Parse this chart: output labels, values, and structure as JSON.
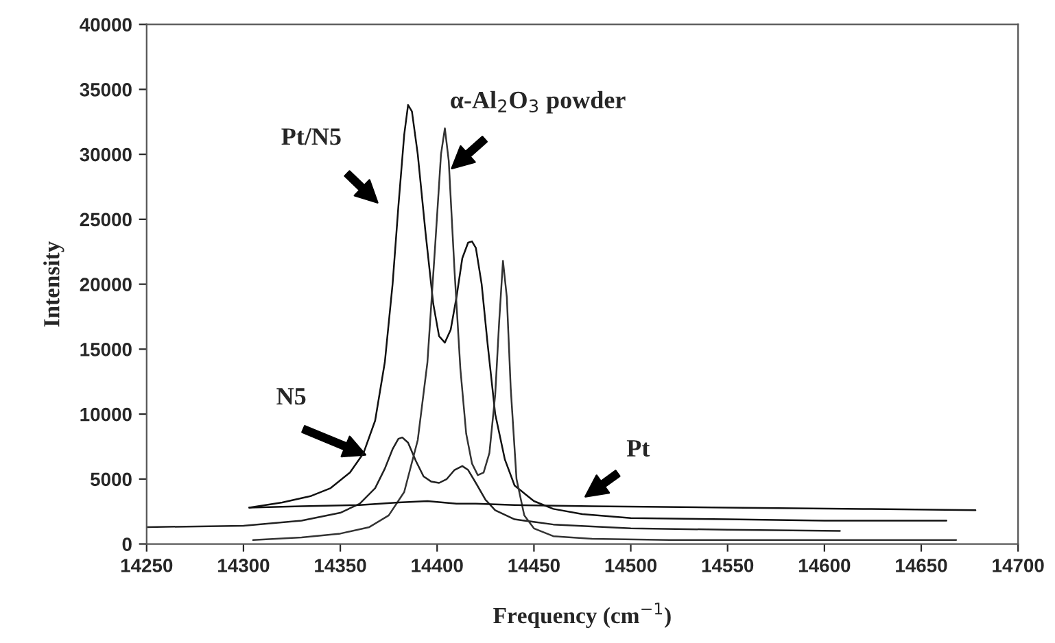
{
  "chart_data": {
    "type": "line",
    "xlabel": "Frequency (cm$^{−1}$)",
    "ylabel": "Intensity",
    "xlim": [
      14250,
      14700
    ],
    "ylim": [
      0,
      40000
    ],
    "xticks": [
      14250,
      14300,
      14350,
      14400,
      14450,
      14500,
      14550,
      14600,
      14650,
      14700
    ],
    "yticks": [
      0,
      5000,
      10000,
      15000,
      20000,
      25000,
      30000,
      35000,
      40000
    ],
    "grid": false,
    "marker": "none",
    "line_style": "solid",
    "series": [
      {
        "color": "#111111",
        "x": [
          14303,
          14320,
          14335,
          14345,
          14355,
          14362,
          14368,
          14373,
          14377,
          14380,
          14383,
          14385,
          14387,
          14390,
          14394,
          14398,
          14401,
          14404,
          14407,
          14410,
          14413,
          14416,
          14418,
          14420,
          14423,
          14426,
          14430,
          14435,
          14440,
          14450,
          14460,
          14475,
          14500,
          14550,
          14600,
          14663
        ],
        "values": [
          2800,
          3200,
          3700,
          4300,
          5500,
          7000,
          9500,
          14000,
          20000,
          26000,
          31500,
          33800,
          33300,
          30000,
          24000,
          18500,
          16000,
          15500,
          16500,
          19000,
          22000,
          23200,
          23300,
          22800,
          20000,
          15500,
          10000,
          6500,
          4500,
          3300,
          2700,
          2300,
          2000,
          1900,
          1800,
          1800
        ]
      },
      {
        "color": "#222222",
        "x": [
          14250,
          14300,
          14330,
          14350,
          14360,
          14368,
          14373,
          14377,
          14380,
          14382,
          14385,
          14389,
          14393,
          14397,
          14401,
          14405,
          14409,
          14413,
          14416,
          14420,
          14425,
          14430,
          14440,
          14460,
          14500,
          14550,
          14608
        ],
        "values": [
          1300,
          1400,
          1800,
          2400,
          3100,
          4300,
          5800,
          7300,
          8100,
          8200,
          7800,
          6400,
          5200,
          4800,
          4700,
          5000,
          5700,
          6000,
          5700,
          4700,
          3400,
          2600,
          1900,
          1500,
          1200,
          1100,
          1000
        ]
      },
      {
        "color": "#333333",
        "x": [
          14305,
          14330,
          14350,
          14365,
          14375,
          14383,
          14390,
          14395,
          14399,
          14402,
          14404,
          14406,
          14409,
          14412,
          14415,
          14418,
          14421,
          14424,
          14427,
          14430,
          14432,
          14434,
          14436,
          14438,
          14441,
          14445,
          14450,
          14460,
          14480,
          14520,
          14600,
          14668
        ],
        "values": [
          300,
          500,
          800,
          1300,
          2200,
          4000,
          8000,
          14000,
          23000,
          30000,
          32000,
          29500,
          21000,
          13500,
          8500,
          6200,
          5300,
          5500,
          7000,
          11500,
          17000,
          21800,
          19000,
          12000,
          5000,
          2200,
          1200,
          600,
          400,
          300,
          300,
          300
        ]
      },
      {
        "color": "#111111",
        "x": [
          14303,
          14330,
          14360,
          14380,
          14395,
          14410,
          14420,
          14440,
          14480,
          14550,
          14620,
          14678
        ],
        "values": [
          2800,
          2900,
          3000,
          3200,
          3300,
          3100,
          3100,
          3000,
          2900,
          2800,
          2700,
          2600
        ]
      }
    ],
    "annotations": [
      "Pt/N5",
      "α-Al$_{2}$O$_{3}$ powder",
      "N5",
      "Pt"
    ]
  }
}
